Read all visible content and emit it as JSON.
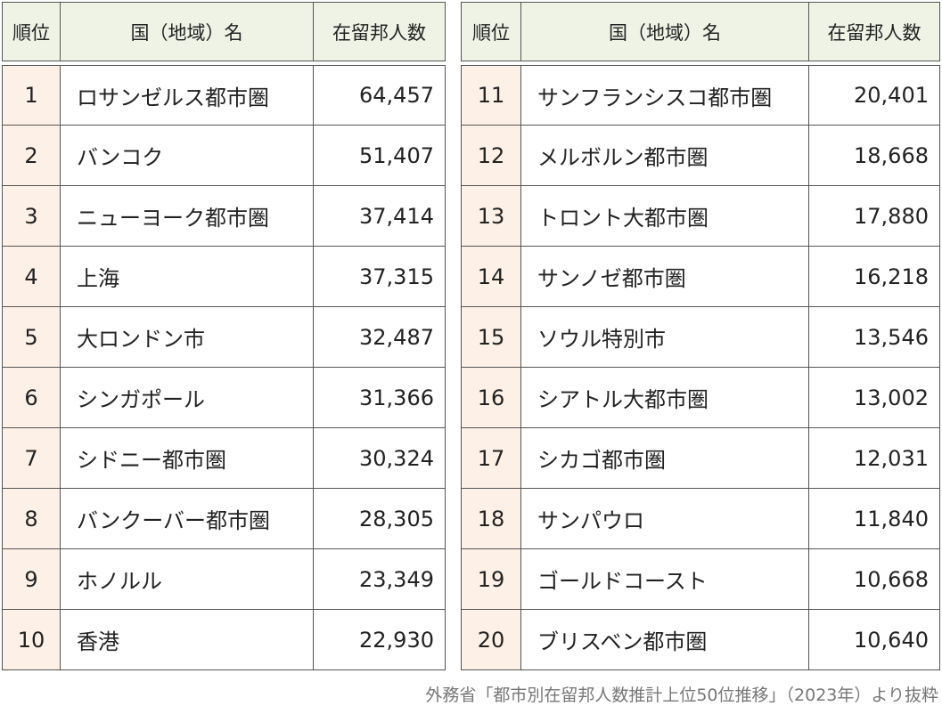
{
  "tables": [
    {
      "header": [
        "順位",
        "国（地域）名",
        "在留邦人数"
      ],
      "rows": [
        [
          "1",
          "ロサンゼルス都市圏",
          "64,457"
        ],
        [
          "2",
          "バンコク",
          "51,407"
        ],
        [
          "3",
          "ニューヨーク都市圏",
          "37,414"
        ],
        [
          "4",
          "上海",
          "37,315"
        ],
        [
          "5",
          "大ロンドン市",
          "32,487"
        ],
        [
          "6",
          "シンガポール",
          "31,366"
        ],
        [
          "7",
          "シドニー都市圏",
          "30,324"
        ],
        [
          "8",
          "バンクーバー都市圏",
          "28,305"
        ],
        [
          "9",
          "ホノルル",
          "23,349"
        ],
        [
          "10",
          "香港",
          "22,930"
        ]
      ]
    },
    {
      "header": [
        "順位",
        "国（地域）名",
        "在留邦人数"
      ],
      "rows": [
        [
          "11",
          "サンフランシスコ都市圏",
          "20,401"
        ],
        [
          "12",
          "メルボルン都市圏",
          "18,668"
        ],
        [
          "13",
          "トロント大都市圏",
          "17,880"
        ],
        [
          "14",
          "サンノゼ都市圏",
          "16,218"
        ],
        [
          "15",
          "ソウル特別市",
          "13,546"
        ],
        [
          "16",
          "シアトル大都市圏",
          "13,002"
        ],
        [
          "17",
          "シカゴ都市圏",
          "12,031"
        ],
        [
          "18",
          "サンパウロ",
          "11,840"
        ],
        [
          "19",
          "ゴールドコースト",
          "10,668"
        ],
        [
          "20",
          "ブリスベン都市圏",
          "10,640"
        ]
      ]
    }
  ],
  "caption": "外務省「都市別在留邦人数推計上位50位推移」（2023年）より抜粋"
}
